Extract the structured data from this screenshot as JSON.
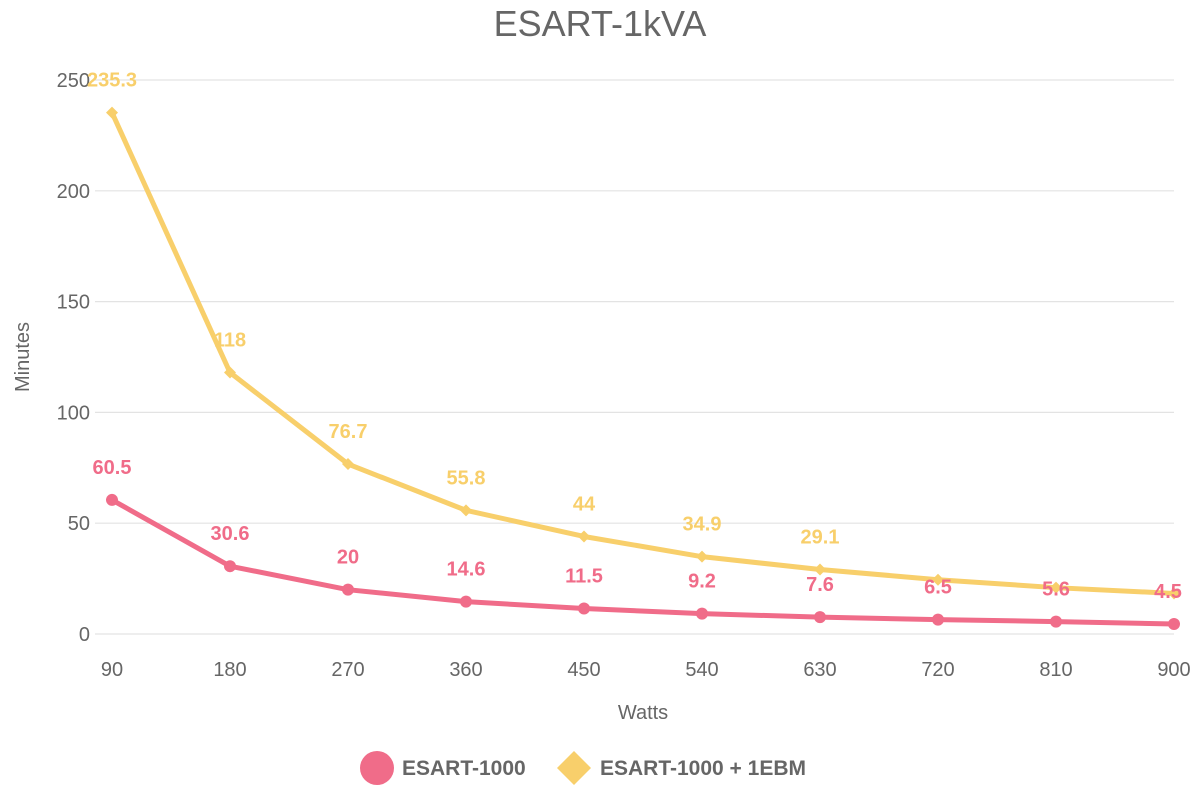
{
  "chart_data": {
    "type": "line",
    "title": "ESART-1kVA",
    "xlabel": "Watts",
    "ylabel": "Minutes",
    "x": [
      "90",
      "180",
      "270",
      "360",
      "450",
      "540",
      "630",
      "720",
      "810",
      "900"
    ],
    "ylim": [
      0,
      250
    ],
    "yticks": [
      0,
      50,
      100,
      150,
      200,
      250
    ],
    "grid": true,
    "legend_position": "bottom",
    "series": [
      {
        "name": "ESART-1000",
        "color": "#f06c89",
        "marker": "circle",
        "values": [
          60.5,
          30.6,
          20,
          14.6,
          11.5,
          9.2,
          7.6,
          6.5,
          5.6,
          4.5
        ],
        "labels": [
          "60.5",
          "30.6",
          "20",
          "14.6",
          "11.5",
          "9.2",
          "7.6",
          "6.5",
          "5.6",
          "4.5"
        ]
      },
      {
        "name": "ESART-1000 + 1EBM",
        "color": "#f8cf6b",
        "marker": "diamond",
        "values": [
          235.3,
          118,
          76.7,
          55.8,
          44,
          34.9,
          29.1,
          24.5,
          20.9,
          18.3
        ],
        "labels": [
          "235.3",
          "118",
          "76.7",
          "55.8",
          "44",
          "34.9",
          "29.1",
          "",
          "",
          ""
        ]
      }
    ]
  }
}
